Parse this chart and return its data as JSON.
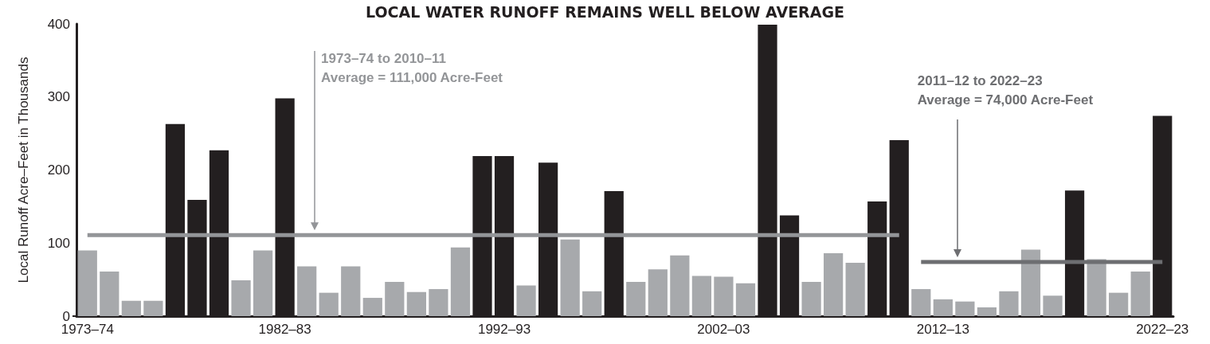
{
  "chart_data": {
    "type": "bar",
    "title": "LOCAL WATER RUNOFF REMAINS WELL BELOW AVERAGE",
    "ylabel": "Local Runoff Acre–Feet in Thousands",
    "categories": [
      "1973–74",
      null,
      null,
      null,
      null,
      null,
      null,
      null,
      null,
      "1982–83",
      null,
      null,
      null,
      null,
      null,
      null,
      null,
      null,
      null,
      "1992–93",
      null,
      null,
      null,
      null,
      null,
      null,
      null,
      null,
      null,
      "2002–03",
      null,
      null,
      null,
      null,
      null,
      null,
      null,
      null,
      null,
      "2012–13",
      null,
      null,
      null,
      null,
      null,
      null,
      null,
      null,
      null,
      "2022–23"
    ],
    "series": [
      {
        "values": [
          90,
          61,
          21,
          21,
          263,
          159,
          227,
          49,
          90,
          298,
          68,
          32,
          68,
          25,
          47,
          33,
          37,
          94,
          219,
          219,
          42,
          210,
          105,
          34,
          171,
          47,
          64,
          83,
          55,
          54,
          45,
          399,
          138,
          47,
          86,
          73,
          157,
          241,
          37,
          23,
          20,
          12,
          34,
          91,
          28,
          172,
          78,
          32,
          61,
          274
        ],
        "colors": [
          "#a7a9ac",
          "#a7a9ac",
          "#a7a9ac",
          "#a7a9ac",
          "#231f20",
          "#231f20",
          "#231f20",
          "#a7a9ac",
          "#a7a9ac",
          "#231f20",
          "#a7a9ac",
          "#a7a9ac",
          "#a7a9ac",
          "#a7a9ac",
          "#a7a9ac",
          "#a7a9ac",
          "#a7a9ac",
          "#a7a9ac",
          "#231f20",
          "#231f20",
          "#a7a9ac",
          "#231f20",
          "#a7a9ac",
          "#a7a9ac",
          "#231f20",
          "#a7a9ac",
          "#a7a9ac",
          "#a7a9ac",
          "#a7a9ac",
          "#a7a9ac",
          "#a7a9ac",
          "#231f20",
          "#231f20",
          "#a7a9ac",
          "#a7a9ac",
          "#a7a9ac",
          "#231f20",
          "#231f20",
          "#a7a9ac",
          "#a7a9ac",
          "#a7a9ac",
          "#a7a9ac",
          "#a7a9ac",
          "#a7a9ac",
          "#a7a9ac",
          "#231f20",
          "#a7a9ac",
          "#a7a9ac",
          "#a7a9ac",
          "#231f20"
        ]
      },
      {
        "type": "line",
        "color": "#939598",
        "values": [
          111,
          111,
          111,
          111,
          111,
          111,
          111,
          111,
          111,
          111,
          111,
          111,
          111,
          111,
          111,
          111,
          111,
          111,
          111,
          111,
          111,
          111,
          111,
          111,
          111,
          111,
          111,
          111,
          111,
          111,
          111,
          111,
          111,
          111,
          111,
          111,
          111,
          111,
          null,
          null,
          null,
          null,
          null,
          null,
          null,
          null,
          null,
          null,
          null,
          null
        ]
      },
      {
        "type": "line",
        "color": "#6d6e71",
        "values": [
          null,
          null,
          null,
          null,
          null,
          null,
          null,
          null,
          null,
          null,
          null,
          null,
          null,
          null,
          null,
          null,
          null,
          null,
          null,
          null,
          null,
          null,
          null,
          null,
          null,
          null,
          null,
          null,
          null,
          null,
          null,
          null,
          null,
          null,
          null,
          null,
          null,
          null,
          74,
          74,
          74,
          74,
          74,
          74,
          74,
          74,
          74,
          74,
          74,
          74
        ]
      }
    ],
    "annotations": [
      "1973–74 to 2010–11\nAverage = 111,000 Acre-Feet",
      "2011–12 to 2022–23\nAverage = 74,000 Acre-Feet"
    ],
    "ylim": [
      0,
      400
    ],
    "yticks": [
      0,
      100,
      200,
      300,
      400
    ]
  }
}
